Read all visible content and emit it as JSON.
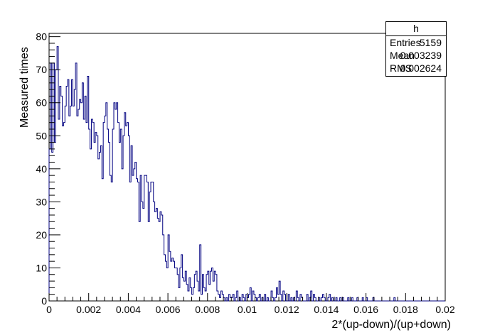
{
  "chart_data": {
    "type": "histogram",
    "xlabel": "2*(up-down)/(up+down)",
    "ylabel": "Measured times",
    "xlim": [
      0,
      0.02
    ],
    "ylim": [
      0,
      81
    ],
    "bin_width": 6.67e-05,
    "x_ticks": [
      "0",
      "0.002",
      "0.004",
      "0.006",
      "0.008",
      "0.01",
      "0.012",
      "0.014",
      "0.016",
      "0.018",
      "0.02"
    ],
    "y_ticks": [
      "0",
      "10",
      "20",
      "30",
      "40",
      "50",
      "60",
      "70",
      "80"
    ],
    "values": [
      46,
      72,
      45,
      72,
      48,
      70,
      77,
      55,
      65,
      62,
      53,
      54,
      59,
      65,
      67,
      56,
      59,
      67,
      59,
      64,
      72,
      56,
      58,
      61,
      60,
      66,
      55,
      62,
      54,
      68,
      52,
      46,
      55,
      54,
      48,
      51,
      50,
      43,
      45,
      47,
      37,
      54,
      56,
      60,
      52,
      48,
      38,
      36,
      52,
      60,
      58,
      60,
      54,
      48,
      52,
      40,
      50,
      57,
      53,
      54,
      50,
      36,
      47,
      38,
      40,
      42,
      37,
      36,
      24,
      38,
      30,
      28,
      38,
      38,
      36,
      24,
      33,
      36,
      36,
      30,
      27,
      28,
      25,
      24,
      27,
      26,
      20,
      14,
      12,
      10,
      20,
      15,
      12,
      13,
      12,
      10,
      10,
      8,
      4,
      10,
      14,
      7,
      6,
      9,
      5,
      3,
      7,
      4,
      2,
      4,
      8,
      9,
      6,
      3,
      17,
      2,
      8,
      4,
      3,
      8,
      9,
      5,
      9,
      10,
      6,
      9,
      8,
      3,
      2,
      1,
      3,
      2,
      1,
      0,
      1,
      0,
      2,
      1,
      1,
      2,
      0,
      1,
      3,
      0,
      1,
      0,
      2,
      1,
      0,
      2,
      1,
      2,
      4,
      0,
      3,
      2,
      1,
      0,
      1,
      2,
      0,
      1,
      0,
      2,
      0,
      1,
      0,
      0,
      3,
      1,
      0,
      1,
      4,
      2,
      6,
      2,
      0,
      3,
      2,
      0,
      0,
      2,
      0,
      1,
      0,
      1,
      0,
      3,
      1,
      0,
      2,
      1,
      0,
      0,
      0,
      2,
      0,
      1,
      3,
      0,
      2,
      1,
      0,
      0,
      1,
      0,
      1,
      2,
      1,
      0,
      0,
      1,
      2,
      0,
      1,
      0,
      0,
      1,
      0,
      0,
      1,
      0,
      1,
      0,
      0,
      0,
      1,
      0,
      0,
      1,
      0,
      0,
      0,
      1,
      0,
      0,
      0,
      1,
      0,
      0,
      1,
      0,
      0,
      0,
      0,
      1,
      0,
      0,
      0,
      0,
      0,
      0,
      0,
      0,
      0,
      0,
      0,
      0,
      0,
      0,
      0,
      1,
      0,
      0,
      0,
      0,
      0,
      0,
      0,
      0,
      0,
      0,
      0,
      0,
      0,
      0,
      0,
      0,
      0,
      0,
      0,
      0,
      0,
      0,
      0,
      0,
      0,
      0,
      0,
      0,
      0,
      0,
      0,
      0,
      0,
      0,
      0,
      0,
      0,
      0,
      0,
      0,
      0,
      0,
      0,
      0,
      0,
      0,
      0,
      0,
      0,
      0,
      0,
      0,
      0,
      0,
      0,
      0,
      0,
      0
    ],
    "line_color": "#000080",
    "grid": false,
    "legend": "top-right"
  },
  "stats": {
    "title": "h",
    "rows": [
      {
        "key": "Entries",
        "value": "5159"
      },
      {
        "key": "Mean",
        "value": "0.003239"
      },
      {
        "key": "RMS",
        "value": "0.002624"
      }
    ]
  }
}
